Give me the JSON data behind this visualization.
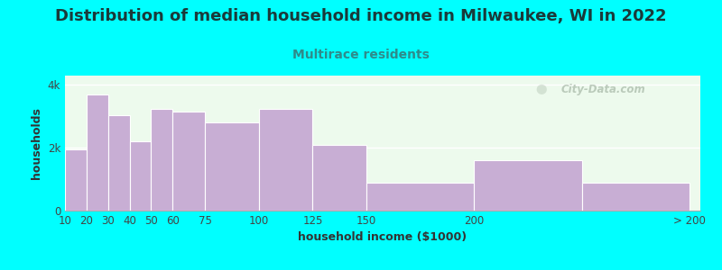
{
  "title": "Distribution of median household income in Milwaukee, WI in 2022",
  "subtitle": "Multirace residents",
  "xlabel": "household income ($1000)",
  "ylabel": "households",
  "background_color": "#00FFFF",
  "bar_color": "#c8aed4",
  "bar_edge_color": "#ffffff",
  "categories": [
    "10",
    "20",
    "30",
    "40",
    "50",
    "60",
    "75",
    "100",
    "125",
    "150",
    "200",
    "> 200"
  ],
  "left_edges": [
    10,
    20,
    30,
    40,
    50,
    60,
    75,
    100,
    125,
    150,
    200,
    250
  ],
  "widths": [
    10,
    10,
    10,
    10,
    10,
    15,
    25,
    25,
    25,
    50,
    50,
    50
  ],
  "values": [
    1950,
    3700,
    3050,
    2200,
    3250,
    3150,
    2800,
    3250,
    2100,
    900,
    1600,
    900
  ],
  "ylim": [
    0,
    4300
  ],
  "yticks": [
    0,
    2000,
    4000
  ],
  "ytick_labels": [
    "0",
    "2k",
    "4k"
  ],
  "title_fontsize": 13,
  "subtitle_fontsize": 10,
  "axis_label_fontsize": 9,
  "tick_fontsize": 8.5,
  "title_color": "#1a3a3a",
  "subtitle_color": "#2e8b8b",
  "axis_label_color": "#333333",
  "tick_color": "#444444",
  "plot_bg_left": "#e8f5e8",
  "plot_bg_right": "#f5fff5",
  "watermark_text": "City-Data.com",
  "watermark_color": "#aabbaa",
  "spine_color": "#aaaaaa"
}
